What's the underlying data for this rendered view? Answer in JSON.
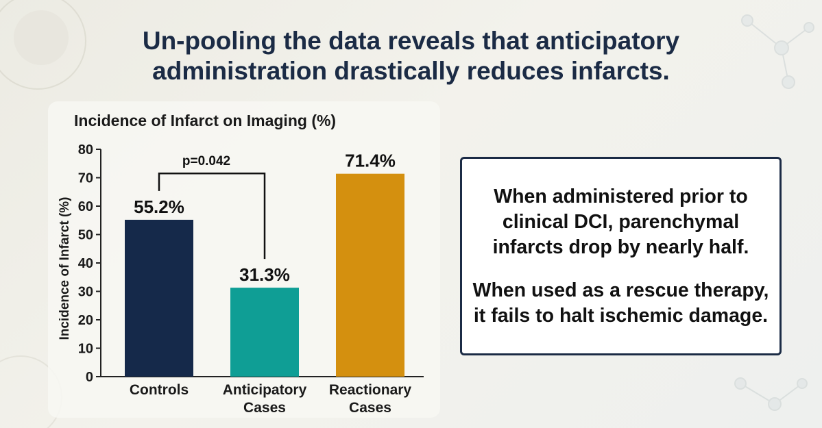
{
  "headline": {
    "line1": "Un-pooling the data reveals that anticipatory",
    "line2": "administration drastically reduces infarcts."
  },
  "chart_data": {
    "type": "bar",
    "title": "Incidence of Infarct on Imaging (%)",
    "ylabel": "Incidence of Infarct (%)",
    "xlabel": "",
    "ylim": [
      0,
      80
    ],
    "yticks": [
      0,
      10,
      20,
      30,
      40,
      50,
      60,
      70,
      80
    ],
    "categories": [
      {
        "lines": [
          "Controls"
        ]
      },
      {
        "lines": [
          "Anticipatory",
          "Cases"
        ]
      },
      {
        "lines": [
          "Reactionary",
          "Cases"
        ]
      }
    ],
    "values": [
      55.2,
      31.3,
      71.4
    ],
    "value_labels": [
      "55.2%",
      "31.3%",
      "71.4%"
    ],
    "colors": [
      "#15294a",
      "#0f9e95",
      "#d4900f"
    ],
    "grid": false,
    "legend": "none",
    "annotations": [
      {
        "type": "significance-bracket",
        "between": [
          0,
          1
        ],
        "label": "p=0.042",
        "y": 72
      }
    ]
  },
  "callout": {
    "paragraph1": "When administered prior to clinical DCI, parenchymal infarcts drop by nearly half.",
    "paragraph2": "When used as a rescue therapy, it fails to halt ischemic damage."
  }
}
